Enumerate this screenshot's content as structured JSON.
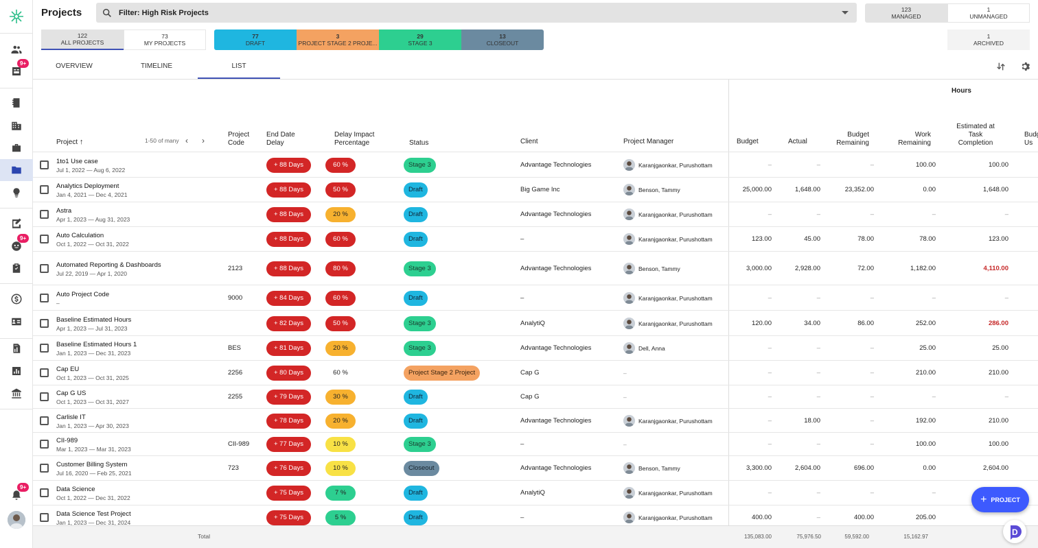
{
  "header": {
    "title": "Projects",
    "filter_text": "Filter: High Risk Projects"
  },
  "managed": {
    "count": "123",
    "label": "MANAGED"
  },
  "unmanaged": {
    "count": "1",
    "label": "UNMANAGED"
  },
  "archived": {
    "count": "1",
    "label": "ARCHIVED"
  },
  "scope_tabs": [
    {
      "count": "122",
      "label": "ALL PROJECTS"
    },
    {
      "count": "73",
      "label": "MY PROJECTS"
    }
  ],
  "stage_counts": [
    {
      "count": "77",
      "label": "DRAFT",
      "color": "#1fb6e0"
    },
    {
      "count": "3",
      "label": "PROJECT STAGE 2 PROJE...",
      "color": "#f4a261"
    },
    {
      "count": "29",
      "label": "STAGE 3",
      "color": "#2dcf90"
    },
    {
      "count": "13",
      "label": "CLOSEOUT",
      "color": "#6b8aa0"
    }
  ],
  "view_tabs": [
    "OVERVIEW",
    "TIMELINE",
    "LIST"
  ],
  "sidebar": {
    "badges": [
      "9+",
      "9+",
      "9+"
    ]
  },
  "columns": {
    "project": "Project",
    "pagination": "1-50 of many",
    "code": "Project Code",
    "end_delay": "End Date Delay",
    "delay_pct": "Delay Impact Percentage",
    "status": "Status",
    "client": "Client",
    "manager": "Project Manager",
    "hours_group": "Hours",
    "budget": "Budget",
    "actual": "Actual",
    "budget_remaining": "Budget Remaining",
    "work_remaining": "Work Remaining",
    "est_completion": "Estimated at Task Completion",
    "budget_used": "Budg Us"
  },
  "rows": [
    {
      "name": "1to1 Use case",
      "dates": "Jul 1, 2022 — Aug 6, 2022",
      "code": "",
      "delay": "+ 88 Days",
      "pct": "60 %",
      "pct_class": "red",
      "status": "Stage 3",
      "status_class": "st-stage",
      "client": "Advantage Technologies",
      "manager": "Karanjgaonkar, Purushottam",
      "budget": "–",
      "actual": "–",
      "brem": "–",
      "wrem": "100.00",
      "est": "100.00",
      "est_red": false
    },
    {
      "name": "Analytics Deployment",
      "dates": "Jan 4, 2021 — Dec 4, 2021",
      "code": "",
      "delay": "+ 88 Days",
      "pct": "50 %",
      "pct_class": "red",
      "status": "Draft",
      "status_class": "st-draft",
      "client": "Big Game Inc",
      "manager": "Benson, Tammy",
      "budget": "25,000.00",
      "actual": "1,648.00",
      "brem": "23,352.00",
      "wrem": "0.00",
      "est": "1,648.00",
      "est_red": false
    },
    {
      "name": "Astra",
      "dates": "Apr 1, 2023 — Aug 31, 2023",
      "code": "",
      "delay": "+ 88 Days",
      "pct": "20 %",
      "pct_class": "orange",
      "status": "Draft",
      "status_class": "st-draft",
      "client": "Advantage Technologies",
      "manager": "Karanjgaonkar, Purushottam",
      "budget": "–",
      "actual": "–",
      "brem": "–",
      "wrem": "–",
      "est": "–",
      "est_red": false
    },
    {
      "name": "Auto Calculation",
      "dates": "Oct 1, 2022 — Oct 31, 2022",
      "code": "",
      "delay": "+ 88 Days",
      "pct": "60 %",
      "pct_class": "red",
      "status": "Draft",
      "status_class": "st-draft",
      "client": "–",
      "manager": "Karanjgaonkar, Purushottam",
      "budget": "123.00",
      "actual": "45.00",
      "brem": "78.00",
      "wrem": "78.00",
      "est": "123.00",
      "est_red": false
    },
    {
      "name": "Automated Reporting & Dashboards",
      "dates": "Jul 22, 2019 — Apr 1, 2020",
      "code": "2123",
      "delay": "+ 88 Days",
      "pct": "80 %",
      "pct_class": "red",
      "status": "Stage 3",
      "status_class": "st-stage",
      "client": "Advantage Technologies",
      "manager": "Benson, Tammy",
      "budget": "3,000.00",
      "actual": "2,928.00",
      "brem": "72.00",
      "wrem": "1,182.00",
      "est": "4,110.00",
      "est_red": true
    },
    {
      "name": "Auto Project Code",
      "dates": "–",
      "code": "9000",
      "delay": "+ 84 Days",
      "pct": "60 %",
      "pct_class": "red",
      "status": "Draft",
      "status_class": "st-draft",
      "client": "–",
      "manager": "Karanjgaonkar, Purushottam",
      "budget": "–",
      "actual": "–",
      "brem": "–",
      "wrem": "–",
      "est": "–",
      "est_red": false
    },
    {
      "name": "Baseline Estimated Hours",
      "dates": "Apr 1, 2023 — Jul 31, 2023",
      "code": "",
      "delay": "+ 82 Days",
      "pct": "50 %",
      "pct_class": "red",
      "status": "Stage 3",
      "status_class": "st-stage",
      "client": "AnalytiQ",
      "manager": "Karanjgaonkar, Purushottam",
      "budget": "120.00",
      "actual": "34.00",
      "brem": "86.00",
      "wrem": "252.00",
      "est": "286.00",
      "est_red": true
    },
    {
      "name": "Baseline Estimated Hours 1",
      "dates": "Jan 1, 2023 — Dec 31, 2023",
      "code": "BES",
      "delay": "+ 81 Days",
      "pct": "20 %",
      "pct_class": "orange",
      "status": "Stage 3",
      "status_class": "st-stage",
      "client": "Advantage Technologies",
      "manager": "Dell, Anna",
      "budget": "–",
      "actual": "–",
      "brem": "–",
      "wrem": "25.00",
      "est": "25.00",
      "est_red": false
    },
    {
      "name": "Cap EU",
      "dates": "Oct 1, 2023 — Oct 31, 2025",
      "code": "2256",
      "delay": "+ 80 Days",
      "pct": "60 %",
      "pct_class": "plain",
      "status": "Project Stage 2 Project",
      "status_class": "st-psp",
      "client": "Cap G",
      "manager": "–",
      "budget": "–",
      "actual": "–",
      "brem": "–",
      "wrem": "210.00",
      "est": "210.00",
      "est_red": false
    },
    {
      "name": "Cap G US",
      "dates": "Oct 1, 2023 — Oct 31, 2027",
      "code": "2255",
      "delay": "+ 79 Days",
      "pct": "30 %",
      "pct_class": "orange",
      "status": "Draft",
      "status_class": "st-draft",
      "client": "Cap G",
      "manager": "–",
      "budget": "–",
      "actual": "–",
      "brem": "–",
      "wrem": "–",
      "est": "–",
      "est_red": false
    },
    {
      "name": "Carlisle IT",
      "dates": "Jan 1, 2023 — Apr 30, 2023",
      "code": "",
      "delay": "+ 78 Days",
      "pct": "20 %",
      "pct_class": "orange",
      "status": "Draft",
      "status_class": "st-draft",
      "client": "Advantage Technologies",
      "manager": "Karanjgaonkar, Purushottam",
      "budget": "–",
      "actual": "18.00",
      "brem": "–",
      "wrem": "192.00",
      "est": "210.00",
      "est_red": false
    },
    {
      "name": "CII-989",
      "dates": "Mar 1, 2023 — Mar 31, 2023",
      "code": "CII-989",
      "delay": "+ 77 Days",
      "pct": "10 %",
      "pct_class": "yellow",
      "status": "Stage 3",
      "status_class": "st-stage",
      "client": "–",
      "manager": "–",
      "budget": "–",
      "actual": "–",
      "brem": "–",
      "wrem": "100.00",
      "est": "100.00",
      "est_red": false
    },
    {
      "name": "Customer Billing System",
      "dates": "Jul 16, 2020 — Feb 25, 2021",
      "code": "723",
      "delay": "+ 76 Days",
      "pct": "10 %",
      "pct_class": "yellow",
      "status": "Closeout",
      "status_class": "st-close",
      "client": "Advantage Technologies",
      "manager": "Benson, Tammy",
      "budget": "3,300.00",
      "actual": "2,604.00",
      "brem": "696.00",
      "wrem": "0.00",
      "est": "2,604.00",
      "est_red": false
    },
    {
      "name": "Data Science",
      "dates": "Oct 1, 2022 — Dec 31, 2022",
      "code": "",
      "delay": "+ 75 Days",
      "pct": "7 %",
      "pct_class": "green",
      "status": "Draft",
      "status_class": "st-draft",
      "client": "AnalytiQ",
      "manager": "Karanjgaonkar, Purushottam",
      "budget": "–",
      "actual": "–",
      "brem": "–",
      "wrem": "–",
      "est": "",
      "est_red": false
    },
    {
      "name": "Data Science Test Project",
      "dates": "Jan 1, 2023 — Dec 31, 2024",
      "code": "",
      "delay": "+ 75 Days",
      "pct": "5 %",
      "pct_class": "green",
      "status": "Draft",
      "status_class": "st-draft",
      "client": "–",
      "manager": "Karanjgaonkar, Purushottam",
      "budget": "400.00",
      "actual": "–",
      "brem": "400.00",
      "wrem": "205.00",
      "est": "",
      "est_red": false
    }
  ],
  "totals": {
    "label": "Total",
    "budget": "135,083.00",
    "actual": "75,976.50",
    "brem": "59,592.00",
    "wrem": "15,162.97"
  },
  "fab_label": "PROJECT"
}
